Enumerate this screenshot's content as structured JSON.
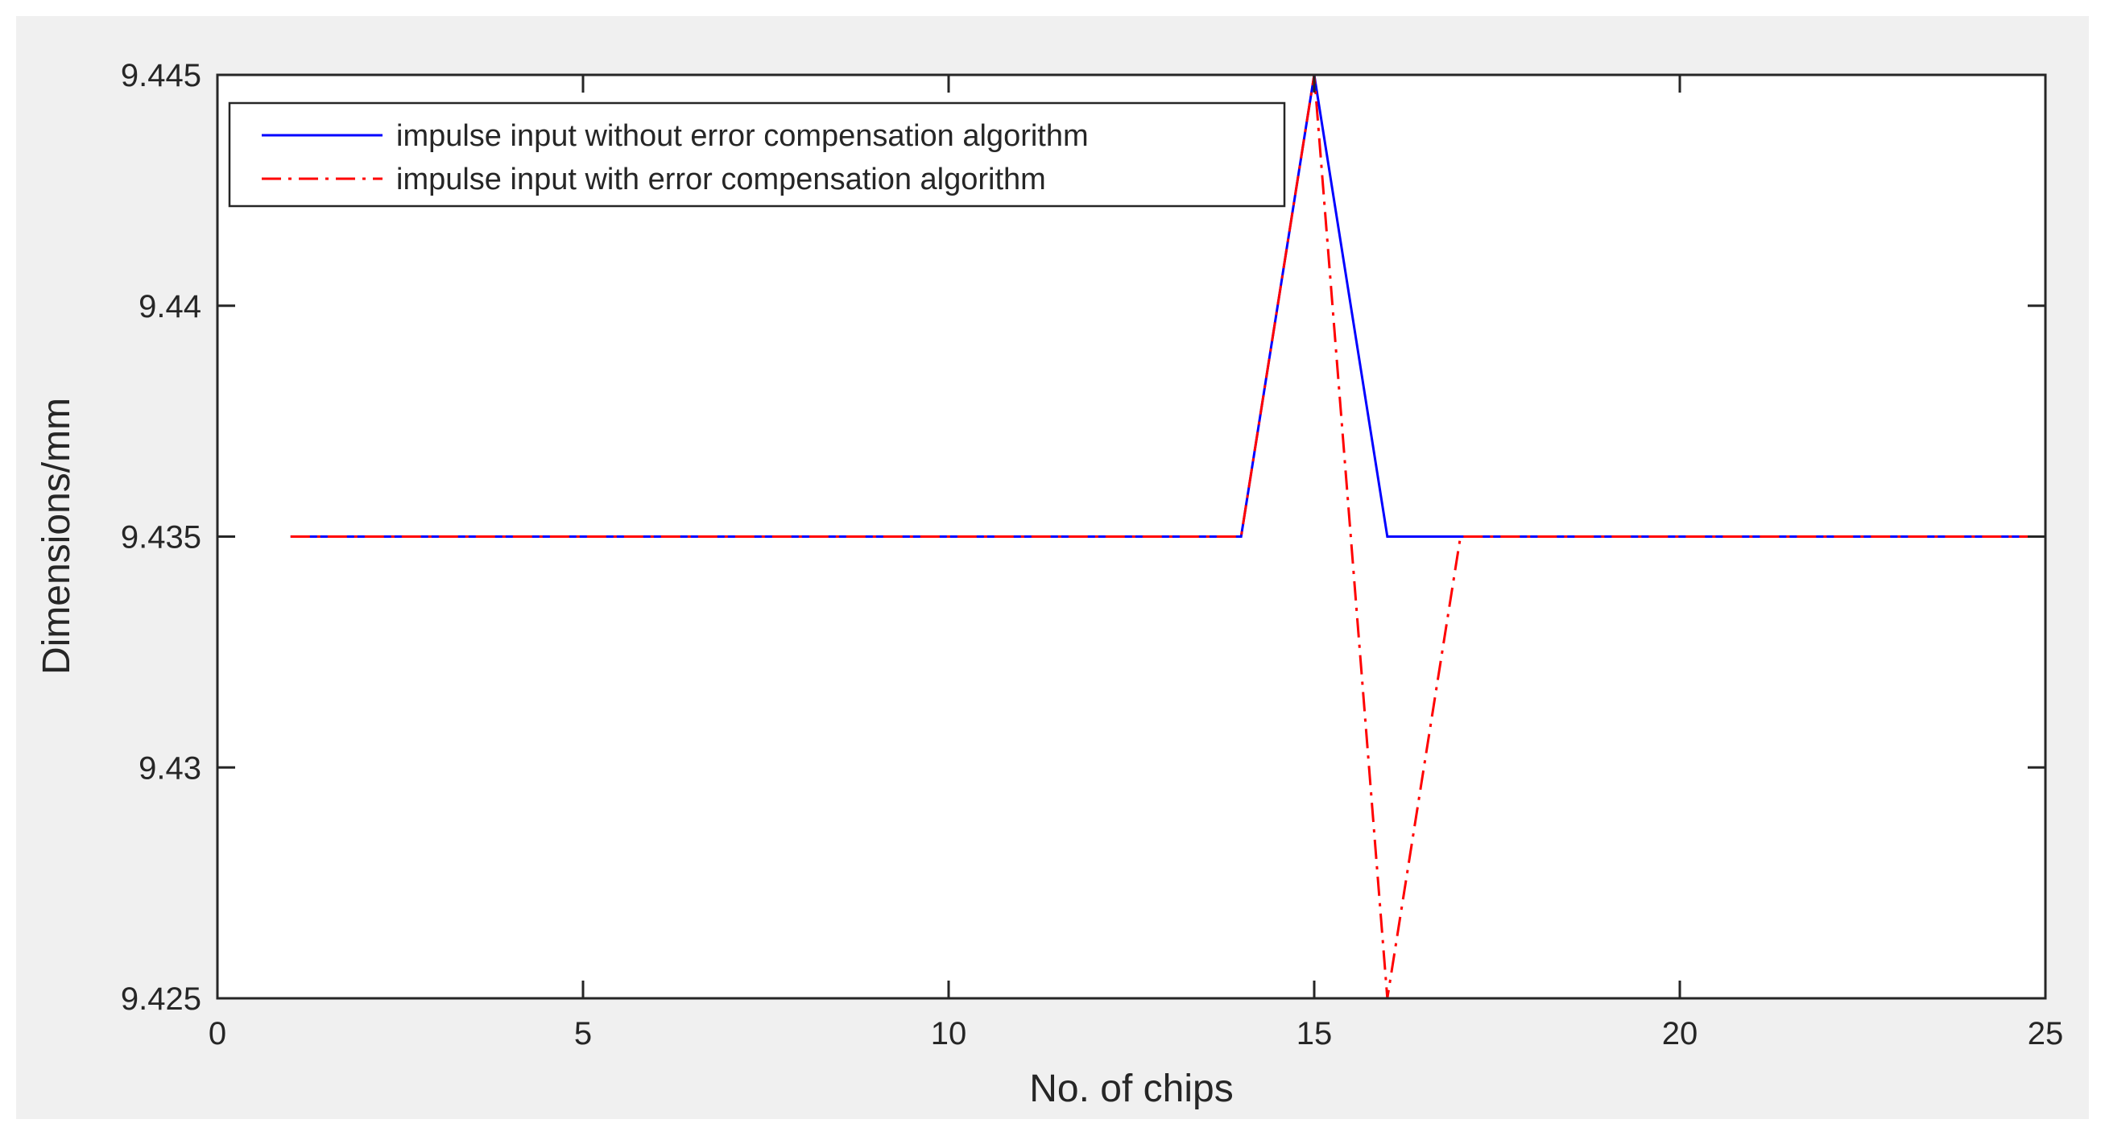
{
  "chart_data": {
    "type": "line",
    "title": "",
    "xlabel": "No. of chips",
    "ylabel": "Dimensions/mm",
    "xlim": [
      0,
      25
    ],
    "ylim": [
      9.425,
      9.445
    ],
    "xticks": [
      0,
      5,
      10,
      15,
      20,
      25
    ],
    "yticks": [
      9.425,
      9.43,
      9.435,
      9.44,
      9.445
    ],
    "xtick_labels": [
      "0",
      "5",
      "10",
      "15",
      "20",
      "25"
    ],
    "ytick_labels": [
      "9.425",
      "9.43",
      "9.435",
      "9.44",
      "9.445"
    ],
    "grid": false,
    "legend_position": "top-left",
    "series": [
      {
        "name": "impulse input without error compensation algorithm",
        "color": "#0000ff",
        "line_style": "solid",
        "x": [
          1,
          14,
          15,
          16,
          25
        ],
        "y": [
          9.435,
          9.435,
          9.445,
          9.435,
          9.435
        ]
      },
      {
        "name": "impulse input with error compensation algorithm",
        "color": "#ff0000",
        "line_style": "dash-dot",
        "x": [
          1,
          14,
          15,
          16,
          17,
          25
        ],
        "y": [
          9.435,
          9.435,
          9.445,
          9.425,
          9.435,
          9.435
        ]
      }
    ]
  }
}
